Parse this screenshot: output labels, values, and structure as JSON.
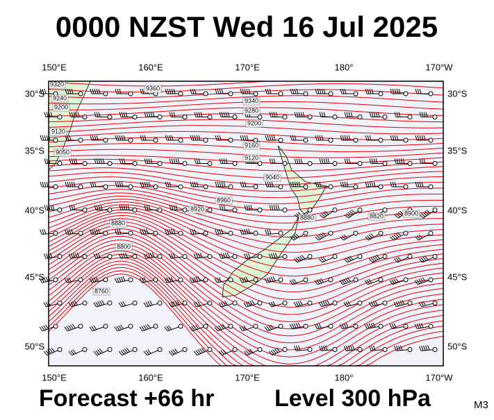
{
  "header": {
    "title": "0000 NZST Wed 16 Jul 2025"
  },
  "map": {
    "longitudes": [
      "150°E",
      "160°E",
      "170°E",
      "180°",
      "170°W"
    ],
    "latitudes": [
      "30°S",
      "35°S",
      "40°S",
      "45°S",
      "50°S"
    ],
    "contour_labels": [
      "9320",
      "9240",
      "9200",
      "9120",
      "9050",
      "9360",
      "9340",
      "9280",
      "9200",
      "9160",
      "9120",
      "9040",
      "8960",
      "8920",
      "8880",
      "8800",
      "8760",
      "8880",
      "8820",
      "8900"
    ]
  },
  "footer": {
    "forecast": "Forecast +66 hr",
    "level": "Level 300 hPa",
    "model": "M3"
  }
}
